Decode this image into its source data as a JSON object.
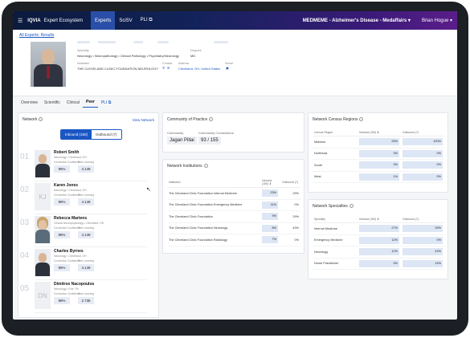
{
  "topbar": {
    "logo": "IQVIA",
    "app_name": "Expert Ecosystem",
    "nav": [
      {
        "label": "Experts",
        "active": true
      },
      {
        "label": "SciSV",
        "active": false
      },
      {
        "label": "PLI ⧉",
        "active": false
      }
    ],
    "project": "MEDMEME - Alzheimer's Disease - Medaffairs ▾",
    "user": "Brian Hogue ▾"
  },
  "breadcrumb": "All Experts: Results",
  "profile": {
    "specialty_label": "Specialty",
    "specialty_value": "Neurology • Neuropathology • Clinical Pathology • Psychiatry/Neurology",
    "degrees_label": "Degrees",
    "degrees_value": "MD",
    "institution_label": "Institution",
    "institution_value": "THE CLEVELAND CLINIC FOUNDATION NEUROLOGY",
    "contact_label": "Contact",
    "address_label": "Address",
    "address_value": "Cleveland, OH, United States",
    "social_label": "Social"
  },
  "tabs": [
    {
      "label": "Overview",
      "active": false
    },
    {
      "label": "Scientific",
      "active": false
    },
    {
      "label": "Clinical",
      "active": false
    },
    {
      "label": "Peer",
      "active": true
    },
    {
      "label": "PLI ⧉",
      "active": false
    }
  ],
  "network": {
    "title": "Network",
    "view_link": "View Network",
    "toggle": [
      {
        "label": "Inbound (150)",
        "on": true
      },
      {
        "label": "Outbound (7)",
        "on": false
      }
    ],
    "metric1_label": "Connection Confidence",
    "metric2_label": "Peer Learning",
    "people": [
      {
        "num": "01",
        "name": "Robert Smith",
        "spec": "Neurology • Cleveland, OH",
        "initials": "",
        "kind": "male",
        "confidence": "99%",
        "learning": "4.149"
      },
      {
        "num": "02",
        "name": "Karen Jones",
        "spec": "Neurology • Cleveland, OH",
        "initials": "KJ",
        "kind": "initials",
        "confidence": "99%",
        "learning": "4.149"
      },
      {
        "num": "03",
        "name": "Rebecca Martens",
        "spec": "Clinical Neurophysiology • Cleveland, OH",
        "initials": "",
        "kind": "female",
        "confidence": "99%",
        "learning": "4.149"
      },
      {
        "num": "04",
        "name": "Charles Byrnes",
        "spec": "Neurology • Cleveland, OH",
        "initials": "",
        "kind": "male",
        "confidence": "99%",
        "learning": "4.149"
      },
      {
        "num": "05",
        "name": "Dimitros Nacopoulos",
        "spec": "Neurology • Erie, PA",
        "initials": "DN",
        "kind": "initials",
        "confidence": "99%",
        "learning": "2.735"
      }
    ]
  },
  "community": {
    "title": "Community of Practice",
    "community_label": "Community",
    "community_value": "Jagan Pillai",
    "connections_label": "Community Connections",
    "connections_value": "93 / 155"
  },
  "institutions": {
    "title": "Network Institutions",
    "headers": [
      "Institution",
      "Inbound (150) ⬇",
      "Outbound (7)"
    ],
    "rows": [
      {
        "name": "The Cleveland Clinic Foundation Internal Medicine",
        "inbound": "23%",
        "inbound_pct": 23,
        "outbound": "29%"
      },
      {
        "name": "The Cleveland Clinic Foundation Emergency Medicine",
        "inbound": "11%",
        "inbound_pct": 11,
        "outbound": "0%"
      },
      {
        "name": "The Cleveland Clinic Foundation",
        "inbound": "9%",
        "inbound_pct": 9,
        "outbound": "29%"
      },
      {
        "name": "The Cleveland Clinic Foundation Neurology",
        "inbound": "8%",
        "inbound_pct": 8,
        "outbound": "43%"
      },
      {
        "name": "The Cleveland Clinic Foundation Radiology",
        "inbound": "7%",
        "inbound_pct": 7,
        "outbound": "0%"
      }
    ]
  },
  "census": {
    "title": "Network Census Regions",
    "headers": [
      "Census Region",
      "Inbound (150) ⬇",
      "Outbound (7)"
    ],
    "rows": [
      {
        "name": "Midwest",
        "inbound": "93%",
        "inbound_pct": 93,
        "outbound": "100%",
        "outbound_pct": 100
      },
      {
        "name": "Northeast",
        "inbound": "3%",
        "inbound_pct": 3,
        "outbound": "0%",
        "outbound_pct": 0
      },
      {
        "name": "South",
        "inbound": "3%",
        "inbound_pct": 3,
        "outbound": "0%",
        "outbound_pct": 0
      },
      {
        "name": "West",
        "inbound": "1%",
        "inbound_pct": 1,
        "outbound": "0%",
        "outbound_pct": 0
      }
    ]
  },
  "specialties": {
    "title": "Network Specialties",
    "headers": [
      "Specialty",
      "Inbound (150) ⬇",
      "Outbound (7)"
    ],
    "rows": [
      {
        "name": "Internal Medicine",
        "inbound": "27%",
        "inbound_pct": 27,
        "outbound": "29%",
        "outbound_pct": 29
      },
      {
        "name": "Emergency Medicine",
        "inbound": "12%",
        "inbound_pct": 12,
        "outbound": "0%",
        "outbound_pct": 0
      },
      {
        "name": "Neurology",
        "inbound": "12%",
        "inbound_pct": 12,
        "outbound": "43%",
        "outbound_pct": 43
      },
      {
        "name": "Nurse Practitioner",
        "inbound": "9%",
        "inbound_pct": 9,
        "outbound": "14%",
        "outbound_pct": 14
      }
    ]
  },
  "colors": {
    "accent": "#1a56c4",
    "bar": "#dde6f5",
    "topbar_start": "#0b1a3d",
    "topbar_end": "#5a1d8a"
  }
}
